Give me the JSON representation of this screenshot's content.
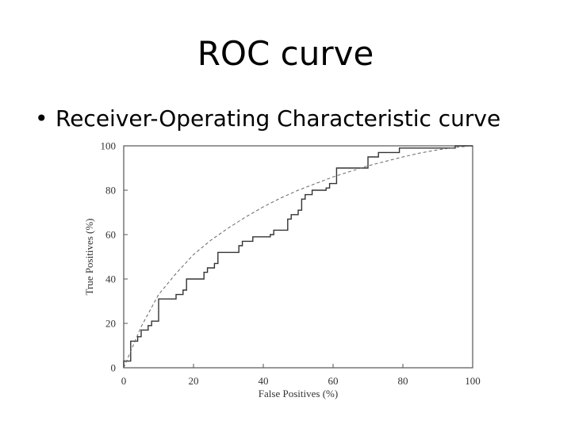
{
  "slide": {
    "title": "ROC curve",
    "bullet": "Receiver-Operating Characteristic curve"
  },
  "chart_data": {
    "type": "line",
    "xlabel": "False Positives (%)",
    "ylabel": "True Positives (%)",
    "xlim": [
      0,
      100
    ],
    "ylim": [
      0,
      100
    ],
    "xticks": [
      0,
      20,
      40,
      60,
      80,
      100
    ],
    "yticks": [
      0,
      20,
      40,
      60,
      80,
      100
    ],
    "grid": false,
    "series": [
      {
        "style": "solid-step",
        "points": [
          [
            0,
            0
          ],
          [
            0,
            3
          ],
          [
            2,
            3
          ],
          [
            2,
            12
          ],
          [
            4,
            12
          ],
          [
            4,
            14
          ],
          [
            5,
            14
          ],
          [
            5,
            17
          ],
          [
            7,
            17
          ],
          [
            7,
            19
          ],
          [
            8,
            19
          ],
          [
            8,
            21
          ],
          [
            10,
            21
          ],
          [
            10,
            31
          ],
          [
            15,
            31
          ],
          [
            15,
            33
          ],
          [
            17,
            33
          ],
          [
            17,
            35
          ],
          [
            18,
            35
          ],
          [
            18,
            40
          ],
          [
            23,
            40
          ],
          [
            23,
            43
          ],
          [
            24,
            43
          ],
          [
            24,
            45
          ],
          [
            26,
            45
          ],
          [
            26,
            47
          ],
          [
            27,
            47
          ],
          [
            27,
            52
          ],
          [
            33,
            52
          ],
          [
            33,
            55
          ],
          [
            34,
            55
          ],
          [
            34,
            57
          ],
          [
            37,
            57
          ],
          [
            37,
            59
          ],
          [
            42,
            59
          ],
          [
            42,
            60
          ],
          [
            43,
            60
          ],
          [
            43,
            62
          ],
          [
            47,
            62
          ],
          [
            47,
            67
          ],
          [
            48,
            67
          ],
          [
            48,
            69
          ],
          [
            50,
            69
          ],
          [
            50,
            71
          ],
          [
            51,
            71
          ],
          [
            51,
            76
          ],
          [
            52,
            76
          ],
          [
            52,
            78
          ],
          [
            54,
            78
          ],
          [
            54,
            80
          ],
          [
            58,
            80
          ],
          [
            58,
            81
          ],
          [
            59,
            81
          ],
          [
            59,
            83
          ],
          [
            61,
            83
          ],
          [
            61,
            90
          ],
          [
            70,
            90
          ],
          [
            70,
            95
          ],
          [
            73,
            95
          ],
          [
            73,
            97
          ],
          [
            79,
            97
          ],
          [
            79,
            99
          ],
          [
            95,
            99
          ],
          [
            95,
            100
          ],
          [
            100,
            100
          ]
        ]
      },
      {
        "style": "dashed-fit",
        "points": [
          [
            0,
            0
          ],
          [
            5,
            18.5
          ],
          [
            10,
            33
          ],
          [
            15,
            42.5
          ],
          [
            20,
            51
          ],
          [
            25,
            57.5
          ],
          [
            30,
            63
          ],
          [
            35,
            68
          ],
          [
            40,
            72.5
          ],
          [
            45,
            76.5
          ],
          [
            50,
            80
          ],
          [
            55,
            83
          ],
          [
            60,
            86
          ],
          [
            65,
            88.5
          ],
          [
            70,
            91
          ],
          [
            75,
            93
          ],
          [
            80,
            95
          ],
          [
            85,
            96.8
          ],
          [
            90,
            98.2
          ],
          [
            95,
            99.3
          ],
          [
            100,
            100
          ]
        ]
      }
    ]
  }
}
